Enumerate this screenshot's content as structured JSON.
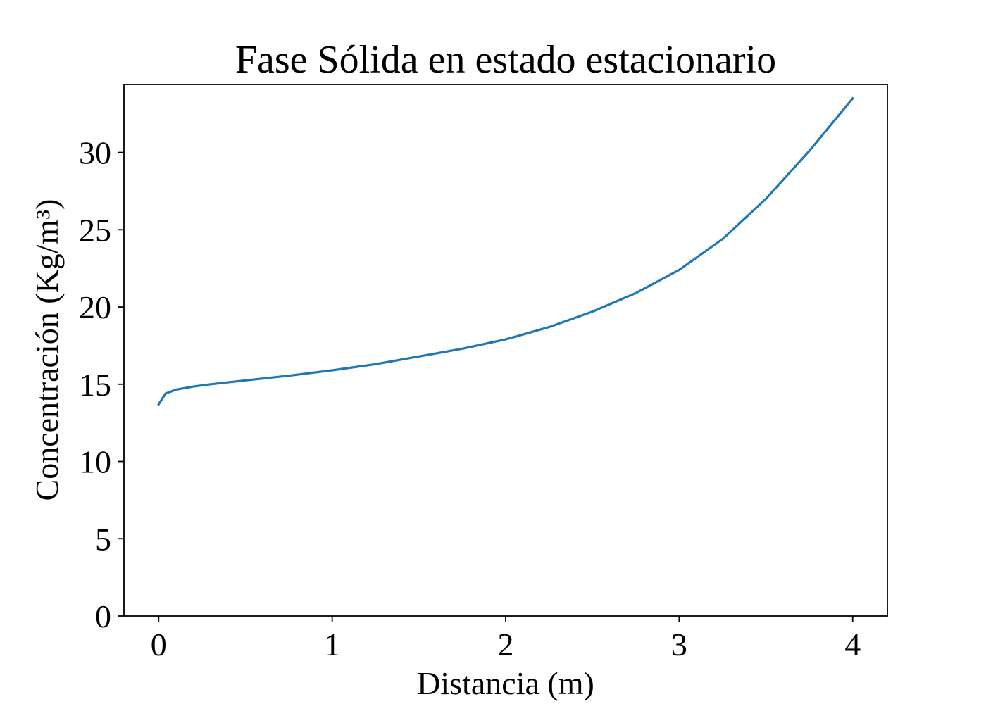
{
  "chart_data": {
    "type": "line",
    "title": "Fase Sólida en estado estacionario",
    "xlabel": "Distancia (m)",
    "ylabel": "Concentración (Kg/m³)",
    "xlim": [
      -0.2,
      4.2
    ],
    "ylim": [
      0,
      34.4
    ],
    "xticks": [
      0,
      1,
      2,
      3,
      4
    ],
    "xtick_labels": [
      "0",
      "1",
      "2",
      "3",
      "4"
    ],
    "yticks": [
      0,
      5,
      10,
      15,
      20,
      25,
      30
    ],
    "ytick_labels": [
      "0",
      "5",
      "10",
      "15",
      "20",
      "25",
      "30"
    ],
    "grid": false,
    "series": [
      {
        "color": "#1f77b4",
        "x": [
          0.0,
          0.04,
          0.1,
          0.2,
          0.3,
          0.5,
          0.75,
          1.0,
          1.25,
          1.5,
          1.75,
          2.0,
          2.25,
          2.5,
          2.75,
          3.0,
          3.25,
          3.5,
          3.75,
          4.0
        ],
        "y": [
          13.7,
          14.4,
          14.65,
          14.85,
          15.0,
          15.25,
          15.55,
          15.9,
          16.3,
          16.8,
          17.3,
          17.9,
          18.7,
          19.7,
          20.9,
          22.4,
          24.4,
          27.0,
          30.1,
          33.5
        ]
      }
    ]
  }
}
